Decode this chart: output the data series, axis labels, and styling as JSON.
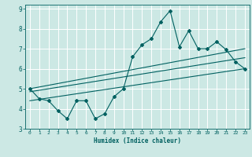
{
  "xlabel": "Humidex (Indice chaleur)",
  "ylabel": "",
  "xlim": [
    -0.5,
    23.5
  ],
  "ylim": [
    3,
    9.2
  ],
  "xticks": [
    0,
    1,
    2,
    3,
    4,
    5,
    6,
    7,
    8,
    9,
    10,
    11,
    12,
    13,
    14,
    15,
    16,
    17,
    18,
    19,
    20,
    21,
    22,
    23
  ],
  "yticks": [
    3,
    4,
    5,
    6,
    7,
    8,
    9
  ],
  "bg_color": "#cce8e4",
  "line_color": "#006060",
  "grid_color": "#ffffff",
  "main_data_x": [
    0,
    1,
    2,
    3,
    4,
    5,
    6,
    7,
    8,
    9,
    10,
    11,
    12,
    13,
    14,
    15,
    16,
    17,
    18,
    19,
    20,
    21,
    22,
    23
  ],
  "main_data_y": [
    5.0,
    4.5,
    4.4,
    3.9,
    3.5,
    4.4,
    4.4,
    3.5,
    3.75,
    4.6,
    5.0,
    6.6,
    7.2,
    7.5,
    8.35,
    8.9,
    7.1,
    7.9,
    7.0,
    7.0,
    7.35,
    6.95,
    6.35,
    6.0
  ],
  "upper_line_x": [
    0,
    23
  ],
  "upper_line_y": [
    5.0,
    7.0
  ],
  "lower_line_x": [
    0,
    23
  ],
  "lower_line_y": [
    4.4,
    6.0
  ],
  "mid_line_x": [
    0,
    23
  ],
  "mid_line_y": [
    4.85,
    6.55
  ]
}
